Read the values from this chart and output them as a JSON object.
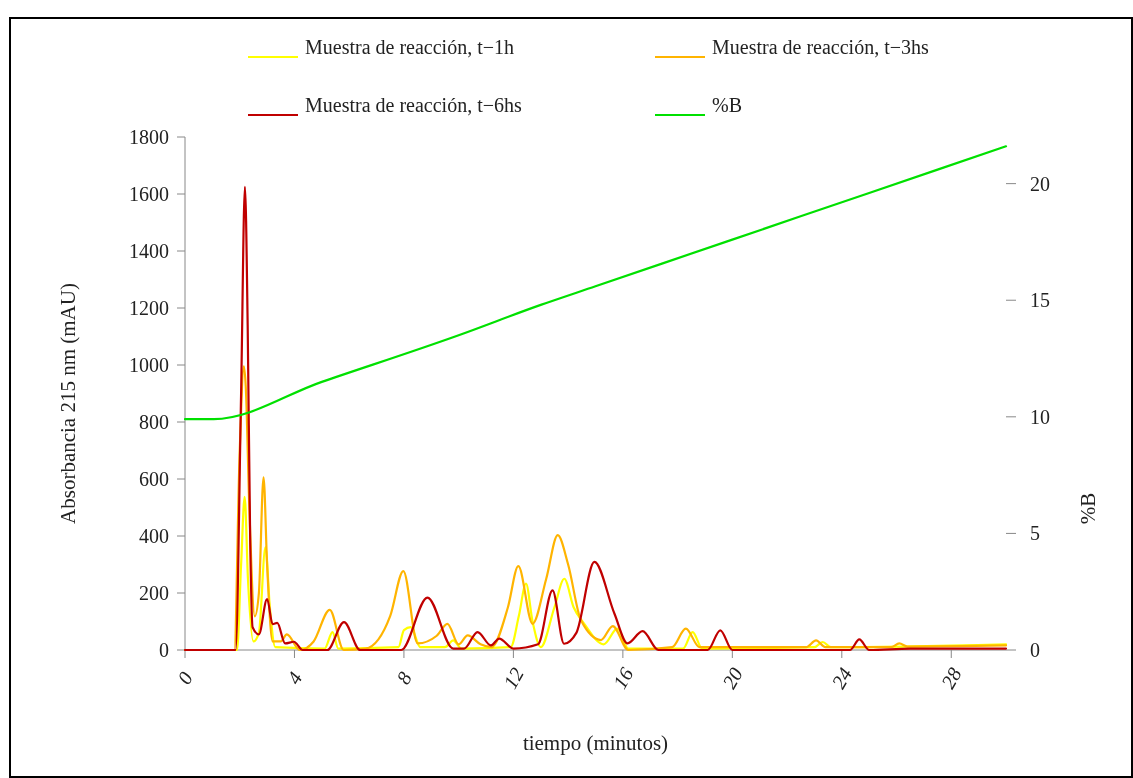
{
  "chart_data": {
    "type": "line",
    "xlabel": "tiempo (minutos)",
    "ylabel": "Absorbancia 215 nm (mAU)",
    "y2label": "%B",
    "xlim": [
      0,
      30
    ],
    "xticks": [
      0,
      4,
      8,
      12,
      16,
      20,
      24,
      28
    ],
    "ylim": [
      0,
      1800
    ],
    "yticks": [
      0,
      200,
      400,
      600,
      800,
      1000,
      1200,
      1400,
      1600,
      1800
    ],
    "y2lim": [
      0,
      22
    ],
    "y2ticks": [
      0,
      5,
      10,
      15,
      20
    ],
    "legend": "top",
    "grid": false,
    "marker": "none",
    "line_style": "solid",
    "series": [
      {
        "name": "Muestra de reacción, t−1h",
        "color": "#ffff00",
        "x": [
          0,
          1.9,
          2.05,
          2.18,
          2.3,
          2.5,
          2.7,
          2.94,
          3.1,
          3.3,
          5.1,
          5.39,
          5.6,
          7.8,
          8.0,
          8.25,
          8.6,
          9.5,
          9.8,
          10.1,
          11.9,
          12.2,
          12.46,
          12.7,
          13.0,
          13.5,
          13.86,
          14.2,
          14.59,
          15.3,
          15.8,
          16.2,
          18.2,
          18.55,
          18.9,
          23.0,
          23.3,
          23.6,
          30
        ],
        "values": [
          0,
          0,
          300,
          537,
          250,
          30,
          60,
          361,
          150,
          10,
          5,
          63,
          5,
          10,
          70,
          80,
          10,
          10,
          34,
          5,
          10,
          120,
          233,
          100,
          10,
          150,
          250,
          150,
          92,
          20,
          75,
          5,
          5,
          63,
          5,
          10,
          28,
          10,
          20
        ]
      },
      {
        "name": "Muestra de reacción, t−3hs",
        "color": "#ffb400",
        "x": [
          0,
          1.8,
          2.0,
          2.15,
          2.22,
          2.35,
          2.55,
          2.7,
          2.87,
          3.0,
          3.2,
          3.5,
          3.72,
          4.2,
          4.7,
          5.29,
          5.8,
          6.6,
          7.5,
          7.98,
          8.5,
          9.2,
          9.59,
          10.0,
          10.33,
          10.8,
          11.2,
          11.8,
          12.18,
          12.7,
          13.2,
          13.62,
          14.0,
          14.47,
          15.2,
          15.63,
          16.2,
          17.8,
          18.3,
          18.8,
          22.7,
          23.06,
          23.4,
          25.8,
          26.1,
          26.4,
          30
        ],
        "values": [
          0,
          0,
          700,
          995,
          925,
          500,
          118,
          200,
          606,
          300,
          30,
          30,
          55,
          0,
          30,
          141,
          0,
          5,
          120,
          277,
          23,
          50,
          92,
          20,
          51,
          20,
          10,
          150,
          294,
          92,
          250,
          403,
          300,
          104,
          35,
          84,
          0,
          10,
          75,
          10,
          10,
          34,
          10,
          10,
          23,
          12,
          16
        ]
      },
      {
        "name": "Muestra de reacción, t−6hs",
        "color": "#c00000",
        "x": [
          0,
          1.85,
          2.05,
          2.19,
          2.29,
          2.38,
          2.47,
          2.7,
          3.0,
          3.2,
          3.37,
          3.66,
          3.98,
          4.3,
          5.2,
          5.81,
          6.4,
          7.9,
          8.86,
          9.8,
          10.2,
          10.69,
          11.18,
          11.48,
          12.0,
          12.9,
          13.43,
          13.85,
          14.3,
          14.96,
          15.69,
          16.17,
          16.72,
          17.3,
          19.1,
          19.56,
          20.0,
          24.3,
          24.64,
          25.0,
          26.5,
          30
        ],
        "values": [
          0,
          0,
          900,
          1625,
          1140,
          400,
          80,
          55,
          179,
          91,
          95,
          23,
          29,
          0,
          0,
          98,
          0,
          0,
          184,
          5,
          5,
          63,
          16,
          40,
          5,
          20,
          209,
          22,
          60,
          309,
          128,
          23,
          66,
          0,
          0,
          69,
          0,
          0,
          37,
          0,
          5,
          5
        ]
      },
      {
        "name": "%B",
        "color": "#00e000",
        "axis": "y2",
        "x": [
          0,
          1.05,
          5,
          10,
          13,
          15,
          20,
          25,
          30
        ],
        "values": [
          9.9,
          9.9,
          11.5,
          13.5,
          14.8,
          15.6,
          17.6,
          19.6,
          21.6
        ]
      }
    ]
  }
}
